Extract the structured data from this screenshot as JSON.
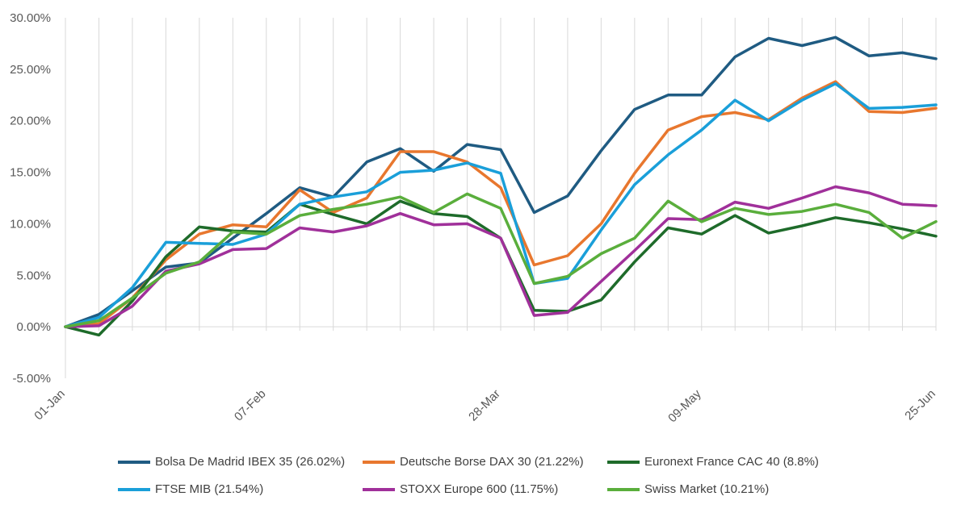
{
  "chart_data": {
    "type": "line",
    "title": "",
    "xlabel": "",
    "ylabel": "",
    "ylim": [
      -5,
      30
    ],
    "yticks": [
      "-5.00%",
      "0.00%",
      "5.00%",
      "10.00%",
      "15.00%",
      "20.00%",
      "25.00%",
      "30.00%"
    ],
    "ytick_values": [
      -5,
      0,
      5,
      10,
      15,
      20,
      25,
      30
    ],
    "xtick_labels": [
      "01-Jan",
      "07-Feb",
      "28-Mar",
      "09-May",
      "25-Jun"
    ],
    "xtick_index": [
      0,
      6,
      13,
      19,
      26
    ],
    "grid": "vertical",
    "legend_position": "bottom",
    "series": [
      {
        "name": "Bolsa De Madrid IBEX 35 (26.02%)",
        "color": "#1f5b82",
        "values": [
          0,
          1.2,
          3.5,
          5.8,
          6.2,
          8.6,
          11.0,
          13.5,
          12.6,
          16.0,
          17.3,
          15.1,
          17.7,
          17.2,
          11.1,
          12.7,
          17.1,
          21.1,
          22.5,
          22.5,
          26.2,
          28.0,
          27.3,
          28.1,
          26.3,
          26.6,
          26.02
        ]
      },
      {
        "name": "Deutsche Borse DAX 30 (21.22%)",
        "color": "#e8772e",
        "values": [
          0,
          0.3,
          2.8,
          6.5,
          9.0,
          9.9,
          9.7,
          13.3,
          11.1,
          12.5,
          17.0,
          17.0,
          16.0,
          13.5,
          6.0,
          6.9,
          10.0,
          14.9,
          19.1,
          20.4,
          20.8,
          20.1,
          22.2,
          23.8,
          20.9,
          20.8,
          21.22
        ]
      },
      {
        "name": "Euronext France CAC 40 (8.8%)",
        "color": "#1e6b2a",
        "values": [
          0,
          -0.8,
          2.5,
          6.8,
          9.7,
          9.3,
          9.2,
          11.9,
          10.9,
          10.0,
          12.2,
          11.0,
          10.7,
          8.6,
          1.6,
          1.5,
          2.6,
          6.3,
          9.6,
          9.0,
          10.8,
          9.1,
          9.8,
          10.6,
          10.1,
          9.5,
          8.8
        ]
      },
      {
        "name": "FTSE MIB (21.54%)",
        "color": "#1a9fd9",
        "values": [
          0,
          0.9,
          3.8,
          8.2,
          8.1,
          8.0,
          9.0,
          11.9,
          12.6,
          13.1,
          15.0,
          15.2,
          15.9,
          14.9,
          4.2,
          4.7,
          9.4,
          13.8,
          16.7,
          19.1,
          22.0,
          20.0,
          22.0,
          23.6,
          21.2,
          21.3,
          21.54
        ]
      },
      {
        "name": "STOXX Europe 600 (11.75%)",
        "color": "#a0309a",
        "values": [
          0,
          0.1,
          2.0,
          5.4,
          6.1,
          7.5,
          7.6,
          9.6,
          9.2,
          9.8,
          11.0,
          9.9,
          10.0,
          8.6,
          1.1,
          1.4,
          4.4,
          7.4,
          10.5,
          10.4,
          12.1,
          11.5,
          12.5,
          13.6,
          13.0,
          11.9,
          11.75
        ]
      },
      {
        "name": "Swiss Market (10.21%)",
        "color": "#5aae3c",
        "values": [
          0,
          0.6,
          2.8,
          5.2,
          6.3,
          9.2,
          9.0,
          10.8,
          11.4,
          11.9,
          12.6,
          11.1,
          12.9,
          11.5,
          4.2,
          4.9,
          7.1,
          8.6,
          12.2,
          10.2,
          11.5,
          10.9,
          11.2,
          11.9,
          11.1,
          8.6,
          10.21
        ]
      }
    ]
  }
}
